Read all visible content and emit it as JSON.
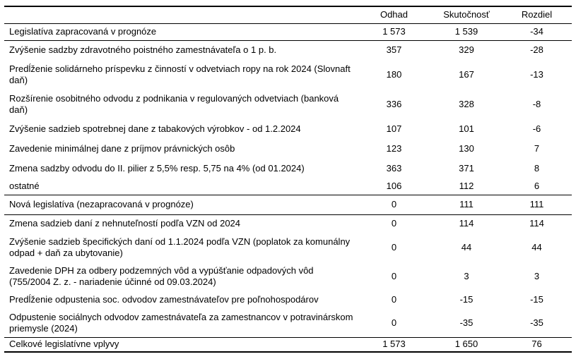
{
  "colors": {
    "background": "#ffffff",
    "text": "#000000",
    "border": "#000000"
  },
  "table": {
    "header": {
      "label": "",
      "odhad": "Odhad",
      "skutocnost": "Skutočnosť",
      "rozdiel": "Rozdiel"
    },
    "rows": [
      {
        "label": "Legislatíva zapracovaná v prognóze",
        "odhad": "1 573",
        "skutocnost": "1 539",
        "rozdiel": "-34"
      },
      {
        "label": "Zvýšenie sadzby zdravotného poistného zamestnávateľa o 1 p. b.",
        "odhad": "357",
        "skutocnost": "329",
        "rozdiel": "-28"
      },
      {
        "label": "Predĺženie solidárneho príspevku z činností v odvetviach ropy na rok 2024 (Slovnaft daň)",
        "odhad": "180",
        "skutocnost": "167",
        "rozdiel": "-13"
      },
      {
        "label": "Rozšírenie osobitného odvodu z podnikania v regulovaných odvetviach (banková daň)",
        "odhad": "336",
        "skutocnost": "328",
        "rozdiel": "-8"
      },
      {
        "label": "Zvýšenie sadzieb spotrebnej dane z tabakových výrobkov - od 1.2.2024",
        "odhad": "107",
        "skutocnost": "101",
        "rozdiel": "-6"
      },
      {
        "label": "Zavedenie minimálnej dane z príjmov právnických osôb",
        "odhad": "123",
        "skutocnost": "130",
        "rozdiel": "7"
      },
      {
        "label": "Zmena sadzby odvodu do II. pilier z 5,5% resp. 5,75 na 4% (od 01.2024)",
        "odhad": "363",
        "skutocnost": "371",
        "rozdiel": "8"
      },
      {
        "label": "ostatné",
        "odhad": "106",
        "skutocnost": "112",
        "rozdiel": "6"
      },
      {
        "label": "Nová legislatíva (nezapracovaná v prognóze)",
        "odhad": "0",
        "skutocnost": "111",
        "rozdiel": "111"
      },
      {
        "label": "Zmena sadzieb daní z nehnuteľností podľa VZN od 2024",
        "odhad": "0",
        "skutocnost": "114",
        "rozdiel": "114"
      },
      {
        "label": "Zvýšenie sadzieb špecifických daní od 1.1.2024 podľa VZN (poplatok za komunálny odpad + daň za ubytovanie)",
        "odhad": "0",
        "skutocnost": "44",
        "rozdiel": "44"
      },
      {
        "label": "Zavedenie DPH za odbery podzemných vôd a vypúšťanie odpadových vôd (755/2004 Z. z. - nariadenie účinné od 09.03.2024)",
        "odhad": "0",
        "skutocnost": "3",
        "rozdiel": "3"
      },
      {
        "label": "Predĺženie odpustenia soc. odvodov zamestnávateľov pre poľnohospodárov",
        "odhad": "0",
        "skutocnost": "-15",
        "rozdiel": "-15"
      },
      {
        "label": "Odpustenie sociálnych odvodov zamestnávateľa za zamestnancov v potravinárskom priemysle (2024)",
        "odhad": "0",
        "skutocnost": "-35",
        "rozdiel": "-35"
      },
      {
        "label": "Celkové legislatívne vplyvy",
        "odhad": "1 573",
        "skutocnost": "1 650",
        "rozdiel": "76"
      }
    ]
  }
}
